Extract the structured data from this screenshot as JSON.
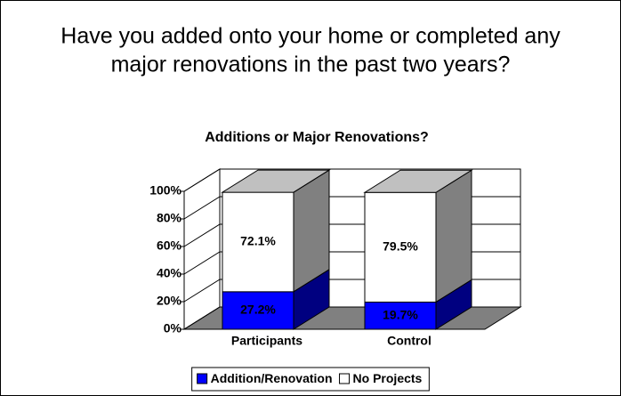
{
  "chart_data": {
    "type": "bar3d_stacked",
    "title": [
      "Have you added onto your home or completed any",
      "major renovations in the past two years?"
    ],
    "subtitle": "Additions or Major Renovations?",
    "categories": [
      "Participants",
      "Control"
    ],
    "series": [
      {
        "name": "Addition/Renovation",
        "color": "#0000ff",
        "side_color": "#000080",
        "values": [
          27.2,
          19.7
        ],
        "value_labels": [
          "27.2%",
          "19.7%"
        ]
      },
      {
        "name": "No Projects",
        "color": "#ffffff",
        "side_color": "#808080",
        "values": [
          72.1,
          79.5
        ],
        "value_labels": [
          "72.1%",
          "79.5%"
        ]
      }
    ],
    "ylim": [
      0,
      100
    ],
    "yticks": [
      {
        "value": 0,
        "label": "0%"
      },
      {
        "value": 20,
        "label": "20%"
      },
      {
        "value": 40,
        "label": "40%"
      },
      {
        "value": 60,
        "label": "60%"
      },
      {
        "value": 80,
        "label": "80%"
      },
      {
        "value": 100,
        "label": "100%"
      }
    ],
    "grid": true,
    "legend": "bottom"
  }
}
